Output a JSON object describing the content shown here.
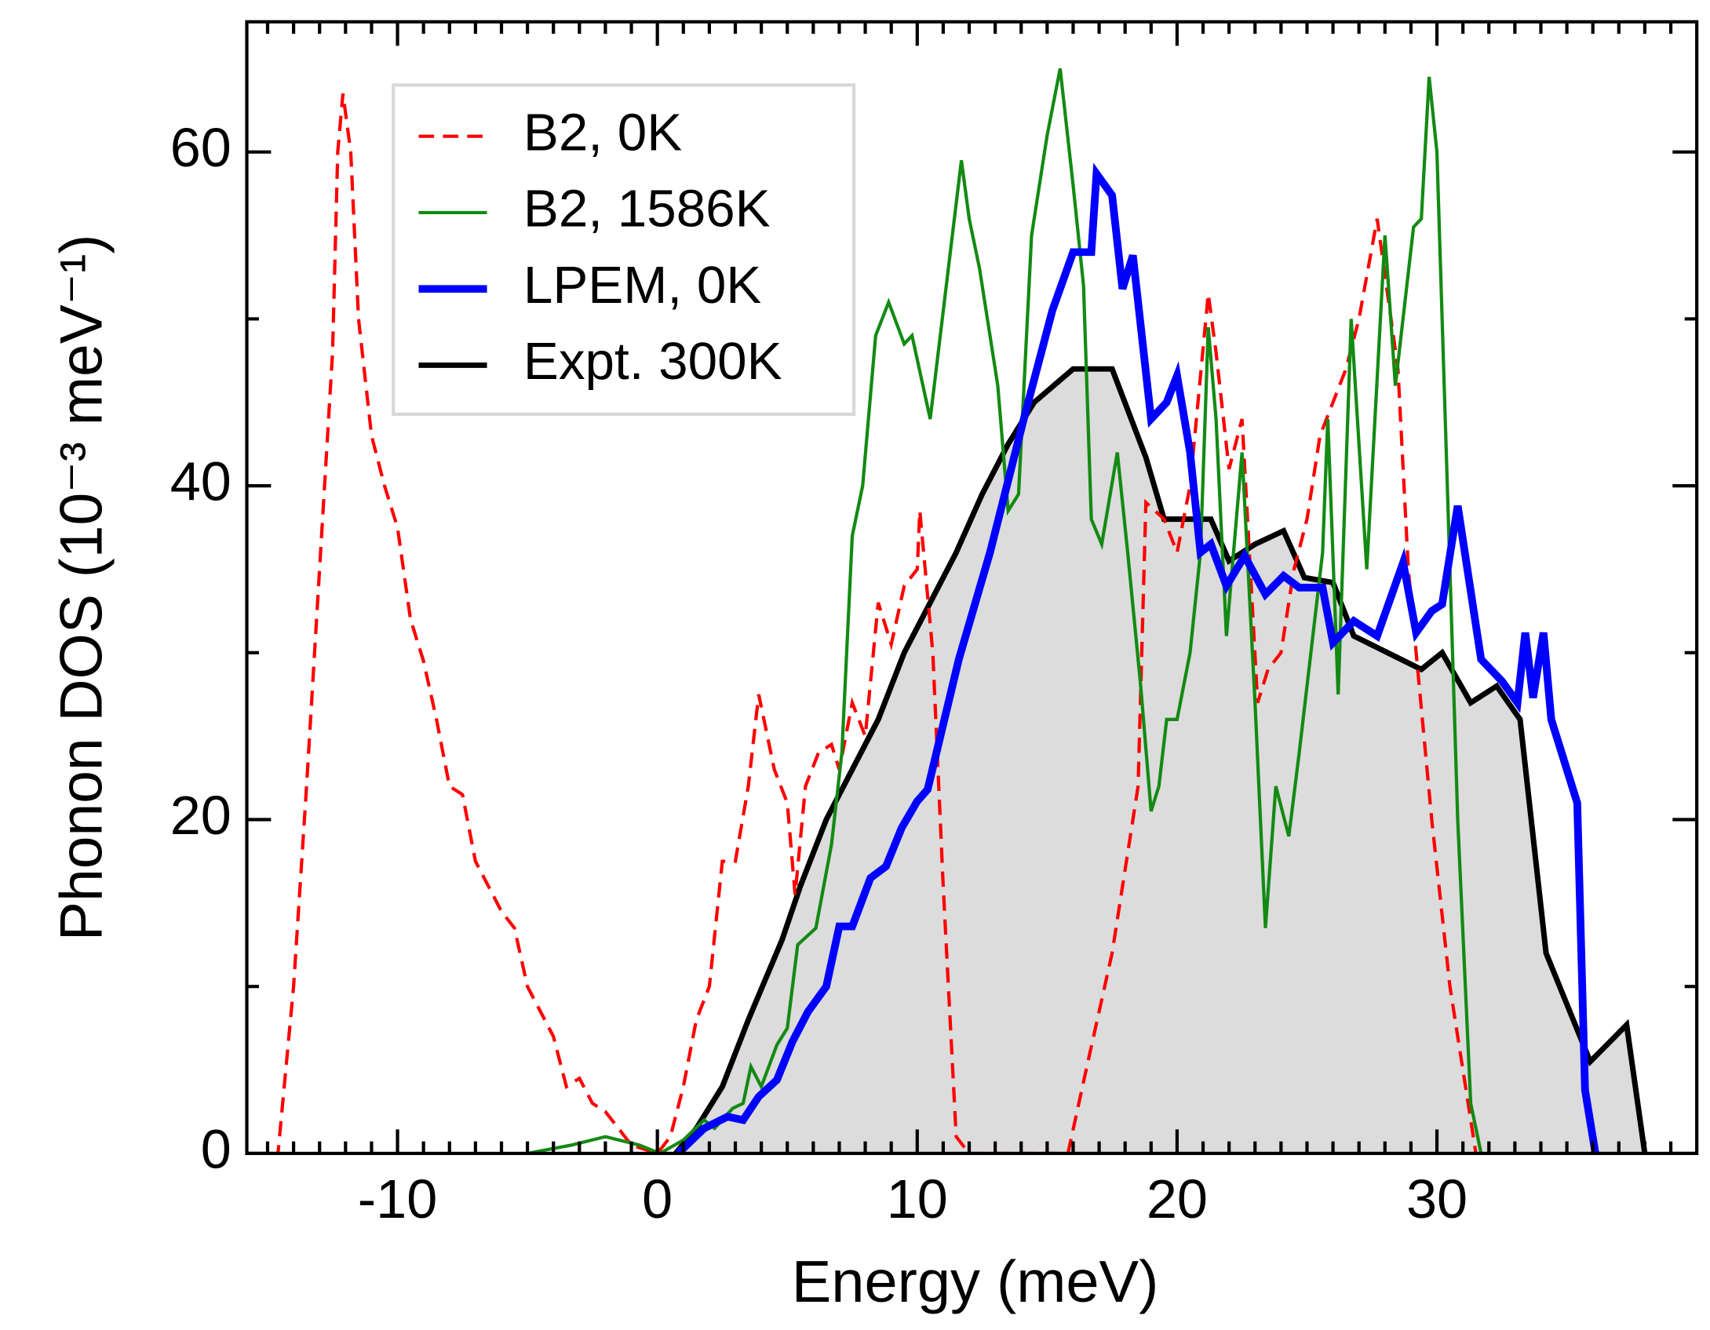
{
  "chart_data": {
    "type": "line",
    "xlabel": "Energy  (meV)",
    "ylabel": "Phonon DOS  (10⁻³ meV⁻¹)",
    "xlim": [
      -15.8,
      40
    ],
    "ylim": [
      0,
      67.8
    ],
    "xticks": [
      -10,
      0,
      10,
      20,
      30
    ],
    "yticks": [
      0,
      20,
      40,
      60
    ],
    "xminorticks": [
      -15,
      -14,
      -13,
      -12,
      -11,
      -9,
      -8,
      -7,
      -6,
      -5,
      -4,
      -3,
      -2,
      -1,
      1,
      2,
      3,
      4,
      5,
      6,
      7,
      8,
      9,
      11,
      12,
      13,
      14,
      15,
      16,
      17,
      18,
      19,
      21,
      22,
      23,
      24,
      25,
      26,
      27,
      28,
      29,
      31,
      32,
      33,
      34,
      35,
      36,
      37,
      38,
      39
    ],
    "yminorticks": [
      10,
      30,
      50
    ],
    "legend": "upper left",
    "series": [
      {
        "name": "Expt. 300K",
        "color": "#000000",
        "fill": "#dcdcdc",
        "style": "solid",
        "width": 5,
        "x": [
          0.7,
          1.5,
          2.5,
          3.5,
          4.8,
          5.5,
          6.5,
          7.5,
          8.5,
          9.5,
          10.5,
          11.5,
          12.5,
          13.5,
          14.5,
          16,
          17.5,
          18.8,
          19.5,
          21.3,
          22,
          23,
          24.1,
          24.9,
          26,
          26.8,
          29.4,
          30.2,
          31.3,
          32.3,
          33.2,
          34.2,
          35.9,
          37.3,
          38
        ],
        "values": [
          0,
          1.5,
          4,
          8,
          12.8,
          16,
          20,
          23,
          26,
          30,
          33,
          36,
          39.5,
          42.5,
          45,
          47,
          47,
          41.7,
          38,
          38,
          35.5,
          36.5,
          37.3,
          34.5,
          34.2,
          31,
          29,
          30,
          27,
          28,
          26,
          12,
          5.5,
          7.7,
          0
        ]
      },
      {
        "name": "B2, 0K",
        "color": "#ff0000",
        "style": "dashed",
        "width": 3,
        "x": [
          -15.8,
          -14.6,
          -14,
          -13.5,
          -13,
          -12.5,
          -12.3,
          -12.1,
          -11.8,
          -11.5,
          -11,
          -10.5,
          -10,
          -9.5,
          -9,
          -8.5,
          -8,
          -7.5,
          -7,
          -6.5,
          -6,
          -5.5,
          -5,
          -4.5,
          -4,
          -3.5,
          -3,
          -2.5,
          -2,
          -1.5,
          -1,
          0,
          0.5,
          1,
          1.5,
          2,
          2.5,
          3,
          3.5,
          3.9,
          4.5,
          5,
          5.3,
          5.7,
          6.2,
          6.7,
          7,
          7.5,
          8,
          8.5,
          9,
          9.5,
          10,
          10.1,
          10.6,
          11,
          11.5,
          12,
          15.8,
          16.5,
          17.5,
          18.5,
          18.8,
          19.5,
          20,
          20.5,
          21.2,
          21.5,
          22,
          22.5,
          23.1,
          23.5,
          24,
          24.5,
          25,
          25.5,
          26,
          26.5,
          27,
          27.7,
          28.5,
          28.9,
          29.8,
          30.5,
          31.1,
          31.5
        ],
        "values": [
          0,
          0,
          10,
          22,
          35,
          48,
          60,
          63.5,
          60,
          50,
          43,
          40,
          37.5,
          32,
          29.5,
          26,
          22,
          21.5,
          17.5,
          16,
          14.5,
          13.5,
          10,
          8.5,
          7,
          4,
          4.5,
          3,
          2.5,
          1.5,
          0.5,
          0,
          1,
          4,
          8,
          10,
          17.5,
          17.5,
          22,
          27.5,
          23,
          21,
          15.5,
          22,
          24,
          24.5,
          23,
          27,
          25,
          33,
          30.5,
          34,
          35,
          38.5,
          30,
          16,
          1,
          0,
          0,
          5,
          12,
          22,
          39,
          38,
          36,
          40,
          51.5,
          48,
          41,
          44,
          27,
          29,
          30,
          35,
          38,
          43,
          45,
          47,
          50,
          56,
          47,
          35,
          20,
          10,
          4,
          0
        ]
      },
      {
        "name": "B2, 1586K",
        "color": "#138a13",
        "style": "solid",
        "width": 3,
        "x": [
          -5,
          -3.3,
          -2,
          -0.7,
          0.1,
          1,
          1.8,
          2.2,
          2.9,
          3.3,
          3.6,
          4,
          4.6,
          5,
          5.4,
          6.1,
          6.7,
          7.1,
          7.5,
          7.9,
          8.4,
          8.9,
          9.5,
          9.8,
          10.5,
          11.7,
          12,
          12.4,
          13.1,
          13.5,
          13.9,
          14.4,
          15,
          15.5,
          16,
          16.4,
          16.7,
          17.1,
          17.7,
          18.1,
          18.6,
          19,
          19.3,
          19.6,
          20,
          20.5,
          20.9,
          21.2,
          21.5,
          21.9,
          22.5,
          23,
          23.4,
          23.8,
          24.3,
          24.7,
          25.6,
          25.8,
          26.2,
          26.7,
          27.3,
          28,
          28.4,
          29.1,
          29.4,
          29.7,
          30,
          30.4,
          30.8,
          31.3,
          31.7
        ],
        "values": [
          0,
          0.5,
          1,
          0.5,
          0,
          0.8,
          2,
          1.5,
          2.7,
          3,
          5.2,
          4,
          6.5,
          7.5,
          12.5,
          13.5,
          18.5,
          24,
          37,
          40,
          49,
          51,
          48.5,
          49,
          44,
          59.5,
          56,
          53,
          46,
          38.5,
          39.5,
          55,
          61,
          65,
          58,
          52,
          38,
          36.5,
          42,
          36,
          28,
          20.5,
          22,
          26,
          26,
          30,
          36,
          49.5,
          44,
          31,
          42,
          27,
          13.5,
          22,
          19,
          24,
          36,
          44,
          27.5,
          50,
          35,
          55,
          46,
          55.5,
          56,
          64.5,
          60,
          40,
          20,
          3,
          0
        ]
      },
      {
        "name": "LPEM, 0K",
        "color": "#0000ff",
        "style": "solid",
        "width": 7,
        "x": [
          0.8,
          1.8,
          2.7,
          3.3,
          3.9,
          4.6,
          5.2,
          5.8,
          6.5,
          7,
          7.5,
          8.2,
          8.8,
          9.4,
          10,
          10.4,
          11.6,
          12.8,
          14.1,
          15.2,
          16,
          16.7,
          16.9,
          17.5,
          17.9,
          18.3,
          19,
          19.6,
          20,
          20.5,
          20.9,
          21.3,
          21.9,
          22.6,
          23.4,
          24.1,
          24.7,
          25.6,
          26,
          26.8,
          27.7,
          28.7,
          29.2,
          29.8,
          30.2,
          30.8,
          31.7,
          32.5,
          33.1,
          33.4,
          33.7,
          34.1,
          34.4,
          35.4,
          35.7,
          36.1
        ],
        "values": [
          0,
          1.5,
          2.2,
          2,
          3.4,
          4.4,
          6.7,
          8.5,
          10,
          13.6,
          13.6,
          16.5,
          17.2,
          19.5,
          21.1,
          21.8,
          29.6,
          36,
          44,
          50.5,
          54,
          54,
          58.7,
          57.4,
          51.8,
          53.8,
          44,
          45,
          46.6,
          42,
          36,
          36.5,
          34,
          35.8,
          33.5,
          34.6,
          33.9,
          33.9,
          30.6,
          31.9,
          31,
          35.4,
          31.2,
          32.5,
          32.9,
          38.8,
          29.6,
          28.3,
          27,
          31.2,
          27.3,
          31.2,
          26,
          21,
          3.8,
          0
        ]
      }
    ],
    "legend_order": [
      1,
      2,
      3,
      0
    ]
  }
}
